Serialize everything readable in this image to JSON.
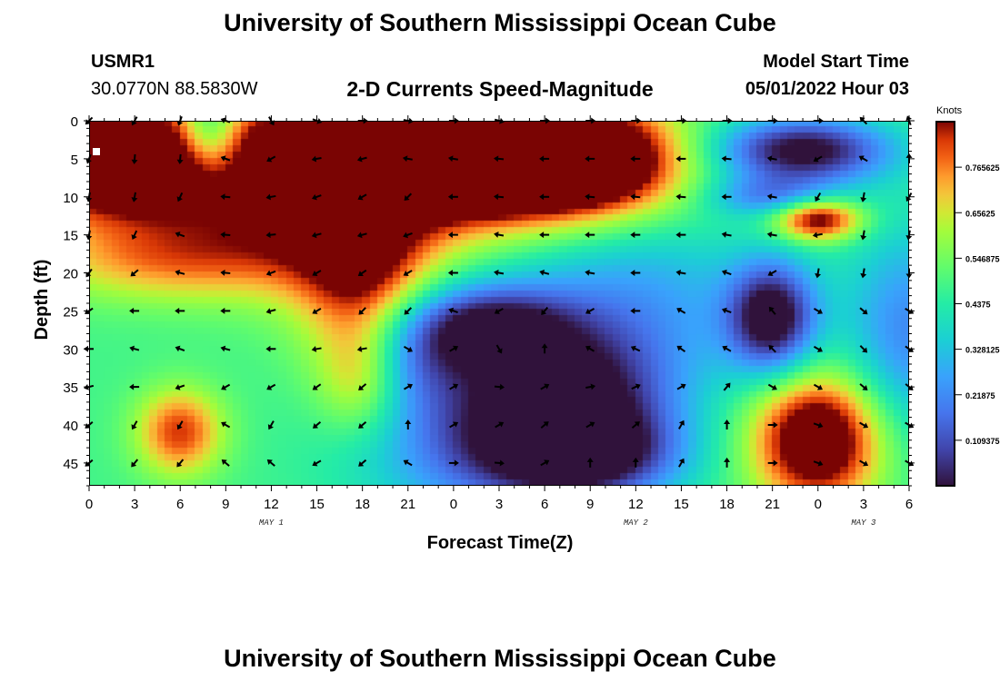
{
  "header": {
    "title": "University of Southern Mississippi Ocean Cube",
    "station": "USMR1",
    "coords": "30.0770N  88.5830W",
    "subtitle": "2-D Currents Speed-Magnitude",
    "model_start_label": "Model Start Time",
    "model_start_value": "05/01/2022 Hour 03"
  },
  "footer": {
    "title": "University of Southern Mississippi Ocean Cube"
  },
  "colors": {
    "arrow": "#000000",
    "marker": "#ffffff"
  },
  "chart_data": {
    "type": "heatmap",
    "title": "2-D Currents Speed-Magnitude",
    "xlabel": "Forecast Time(Z)",
    "ylabel": "Depth (ft)",
    "x_range_hours": [
      0,
      54
    ],
    "y_range_ft": [
      0,
      48
    ],
    "x_ticks": [
      {
        "hour": 0,
        "label": "0"
      },
      {
        "hour": 3,
        "label": "3"
      },
      {
        "hour": 6,
        "label": "6"
      },
      {
        "hour": 9,
        "label": "9"
      },
      {
        "hour": 12,
        "label": "12"
      },
      {
        "hour": 15,
        "label": "15"
      },
      {
        "hour": 18,
        "label": "18"
      },
      {
        "hour": 21,
        "label": "21"
      },
      {
        "hour": 24,
        "label": "0"
      },
      {
        "hour": 27,
        "label": "3"
      },
      {
        "hour": 30,
        "label": "6"
      },
      {
        "hour": 33,
        "label": "9"
      },
      {
        "hour": 36,
        "label": "12"
      },
      {
        "hour": 39,
        "label": "15"
      },
      {
        "hour": 42,
        "label": "18"
      },
      {
        "hour": 45,
        "label": "21"
      },
      {
        "hour": 48,
        "label": "0"
      },
      {
        "hour": 51,
        "label": "3"
      },
      {
        "hour": 54,
        "label": "6"
      }
    ],
    "y_ticks": [
      0,
      5,
      10,
      15,
      20,
      25,
      30,
      35,
      40,
      45
    ],
    "day_labels": [
      {
        "hour": 12,
        "label": "MAY 1"
      },
      {
        "hour": 36,
        "label": "MAY 2"
      },
      {
        "hour": 51,
        "label": "MAY 3"
      }
    ],
    "colorbar": {
      "unit": "Knots",
      "min": 0,
      "max": 0.875,
      "ticks": [
        {
          "value": 0.765625,
          "label": "0.765625"
        },
        {
          "value": 0.65625,
          "label": "0.65625"
        },
        {
          "value": 0.546875,
          "label": "0.546875"
        },
        {
          "value": 0.4375,
          "label": "0.4375"
        },
        {
          "value": 0.328125,
          "label": "0.328125"
        },
        {
          "value": 0.21875,
          "label": "0.21875"
        },
        {
          "value": 0.109375,
          "label": "0.109375"
        }
      ]
    },
    "arrow_times": [
      0,
      3,
      6,
      9,
      12,
      15,
      18,
      21,
      24,
      27,
      30,
      33,
      36,
      39,
      42,
      45,
      48,
      51,
      54
    ],
    "arrow_depths": [
      0,
      5,
      10,
      15,
      20,
      25,
      30,
      35,
      40,
      45
    ],
    "arrow_dir_deg": [
      [
        135,
        120,
        110,
        200,
        60,
        20,
        0,
        10,
        0,
        15,
        0,
        0,
        0,
        0,
        0,
        0,
        0,
        225,
        250
      ],
      [
        110,
        95,
        95,
        200,
        150,
        170,
        165,
        190,
        190,
        185,
        180,
        180,
        180,
        180,
        185,
        190,
        150,
        210,
        270
      ],
      [
        100,
        100,
        115,
        185,
        170,
        160,
        150,
        135,
        180,
        185,
        180,
        185,
        185,
        185,
        180,
        190,
        120,
        100,
        120
      ],
      [
        100,
        115,
        200,
        185,
        175,
        165,
        165,
        160,
        180,
        190,
        180,
        180,
        180,
        180,
        190,
        190,
        170,
        100,
        100
      ],
      [
        125,
        140,
        195,
        185,
        160,
        150,
        145,
        150,
        180,
        190,
        195,
        190,
        180,
        190,
        200,
        150,
        100,
        100,
        90
      ],
      [
        145,
        180,
        180,
        180,
        165,
        150,
        135,
        135,
        200,
        150,
        130,
        150,
        180,
        210,
        200,
        230,
        30,
        40,
        30
      ],
      [
        180,
        195,
        200,
        195,
        180,
        170,
        170,
        30,
        330,
        60,
        270,
        210,
        205,
        215,
        210,
        225,
        30,
        45,
        35
      ],
      [
        165,
        180,
        160,
        150,
        150,
        145,
        140,
        330,
        330,
        5,
        330,
        350,
        335,
        330,
        310,
        30,
        30,
        40,
        40
      ],
      [
        140,
        120,
        120,
        210,
        120,
        140,
        140,
        270,
        330,
        330,
        320,
        330,
        320,
        300,
        270,
        0,
        20,
        30,
        30
      ],
      [
        140,
        130,
        130,
        220,
        220,
        150,
        140,
        210,
        0,
        5,
        330,
        270,
        270,
        300,
        270,
        0,
        20,
        30,
        30
      ]
    ]
  }
}
